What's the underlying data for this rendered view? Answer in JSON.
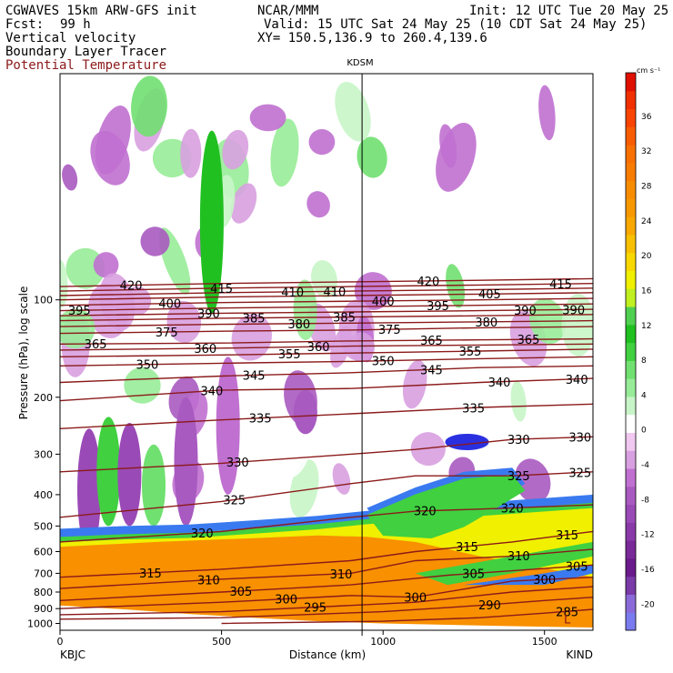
{
  "header": {
    "model": "CGWAVES 15km ARW-GFS init",
    "org": "NCAR/MMM",
    "init": "Init: 12 UTC Tue 20 May 25",
    "fcst_label": "Fcst:",
    "fcst_value": "99 h",
    "valid": "Valid: 15 UTC Sat 24 May 25 (10 CDT Sat 24 May 25)",
    "field1": "Vertical velocity",
    "field2": "Boundary Layer Tracer",
    "field3": "Potential Temperature",
    "xy": "XY= 150.5,136.9 to 260.4,139.6"
  },
  "colors": {
    "theta": "#8b1a1a",
    "terrain": "#ffffff"
  },
  "chart_data": {
    "type": "heatmap",
    "title": "KDSM",
    "xlabel": "Distance (km)",
    "ylabel": "Pressure (hPa), log scale",
    "xlim": [
      0,
      1650
    ],
    "ylim_hpa": [
      1050,
      20
    ],
    "x_ticks": [
      {
        "value": 0,
        "label": "0"
      },
      {
        "value": 500,
        "label": "500"
      },
      {
        "value": 1000,
        "label": "1000"
      },
      {
        "value": 1500,
        "label": "1500"
      }
    ],
    "y_ticks": [
      {
        "value": 100,
        "label": "100"
      },
      {
        "value": 200,
        "label": "200"
      },
      {
        "value": 300,
        "label": "300"
      },
      {
        "value": 400,
        "label": "400"
      },
      {
        "value": 500,
        "label": "500"
      },
      {
        "value": 600,
        "label": "600"
      },
      {
        "value": 700,
        "label": "700"
      },
      {
        "value": 800,
        "label": "800"
      },
      {
        "value": 900,
        "label": "900"
      },
      {
        "value": 1000,
        "label": "1000"
      }
    ],
    "station_left": "KBJC",
    "station_right": "KIND",
    "station_mid_km": 935,
    "colorbar": {
      "unit": "cm s⁻¹",
      "levels": [
        -22,
        -20,
        -18,
        -16,
        -14,
        -12,
        -10,
        -8,
        -6,
        -4,
        -2,
        2,
        4,
        6,
        8,
        10,
        12,
        14,
        16,
        18,
        20,
        22,
        24,
        26,
        28,
        30,
        32,
        34,
        36,
        38,
        40
      ],
      "colors": [
        "#7b7bf0",
        "#8a6ad8",
        "#7a3aa8",
        "#6a1a8a",
        "#7a2a98",
        "#8a3aa8",
        "#9a4ab6",
        "#a85ac0",
        "#c070d0",
        "#d8a0e0",
        "#f0c8f0",
        "#ffffff",
        "#c8f5c8",
        "#98ec98",
        "#70e070",
        "#40d040",
        "#20c020",
        "#50d050",
        "#c0f020",
        "#f0f000",
        "#f8d800",
        "#f8c000",
        "#f8a800",
        "#f89800",
        "#f88c00",
        "#f87c00",
        "#f87000",
        "#f85c00",
        "#f84400",
        "#f03000",
        "#e01000"
      ],
      "labels": [
        {
          "value": -20,
          "label": "-20"
        },
        {
          "value": -16,
          "label": "-16"
        },
        {
          "value": -12,
          "label": "-12"
        },
        {
          "value": -8,
          "label": "-8"
        },
        {
          "value": -4,
          "label": "-4"
        },
        {
          "value": 0,
          "label": "0"
        },
        {
          "value": 4,
          "label": "4"
        },
        {
          "value": 8,
          "label": "8"
        },
        {
          "value": 12,
          "label": "12"
        },
        {
          "value": 16,
          "label": "16"
        },
        {
          "value": 20,
          "label": "20"
        },
        {
          "value": 24,
          "label": "24"
        },
        {
          "value": 28,
          "label": "28"
        },
        {
          "value": 32,
          "label": "32"
        },
        {
          "value": 36,
          "label": "36"
        }
      ]
    },
    "theta_isentropes": [
      {
        "label": "285",
        "points": [
          [
            500,
            1000
          ],
          [
            1000,
            985
          ],
          [
            1300,
            960
          ],
          [
            1500,
            930
          ],
          [
            1650,
            905
          ]
        ],
        "labels_at_km": [
          1570
        ]
      },
      {
        "label": "290",
        "points": [
          [
            0,
            970
          ],
          [
            500,
            960
          ],
          [
            1000,
            920
          ],
          [
            1300,
            880
          ],
          [
            1500,
            850
          ],
          [
            1650,
            830
          ]
        ],
        "labels_at_km": [
          1330
        ]
      },
      {
        "label": "295",
        "points": [
          [
            0,
            940
          ],
          [
            500,
            920
          ],
          [
            900,
            880
          ],
          [
            1100,
            860
          ],
          [
            1400,
            800
          ],
          [
            1650,
            770
          ]
        ],
        "labels_at_km": [
          790
        ]
      },
      {
        "label": "300",
        "points": [
          [
            0,
            900
          ],
          [
            500,
            860
          ],
          [
            900,
            820
          ],
          [
            1100,
            830
          ],
          [
            1400,
            740
          ],
          [
            1650,
            720
          ]
        ],
        "labels_at_km": [
          700,
          1100,
          1500
        ]
      },
      {
        "label": "305",
        "points": [
          [
            0,
            850
          ],
          [
            500,
            800
          ],
          [
            900,
            760
          ],
          [
            1200,
            710
          ],
          [
            1650,
            660
          ]
        ],
        "labels_at_km": [
          560,
          1280,
          1600
        ]
      },
      {
        "label": "310",
        "points": [
          [
            0,
            780
          ],
          [
            500,
            730
          ],
          [
            900,
            700
          ],
          [
            1100,
            640
          ],
          [
            1400,
            620
          ],
          [
            1650,
            590
          ]
        ],
        "labels_at_km": [
          460,
          870,
          1420
        ]
      },
      {
        "label": "315",
        "points": [
          [
            0,
            720
          ],
          [
            500,
            680
          ],
          [
            900,
            640
          ],
          [
            1100,
            600
          ],
          [
            1400,
            560
          ],
          [
            1650,
            520
          ]
        ],
        "labels_at_km": [
          280,
          1260,
          1570
        ]
      },
      {
        "label": "320",
        "points": [
          [
            0,
            560
          ],
          [
            500,
            520
          ],
          [
            900,
            470
          ],
          [
            1100,
            450
          ],
          [
            1400,
            440
          ],
          [
            1650,
            430
          ]
        ],
        "labels_at_km": [
          440,
          1130,
          1400
        ]
      },
      {
        "label": "325",
        "points": [
          [
            0,
            470
          ],
          [
            500,
            420
          ],
          [
            900,
            370
          ],
          [
            1100,
            350
          ],
          [
            1400,
            350
          ],
          [
            1650,
            340
          ]
        ],
        "labels_at_km": [
          540,
          1420,
          1610
        ]
      },
      {
        "label": "330",
        "points": [
          [
            0,
            340
          ],
          [
            500,
            320
          ],
          [
            900,
            300
          ],
          [
            1100,
            290
          ],
          [
            1400,
            270
          ],
          [
            1650,
            265
          ]
        ],
        "labels_at_km": [
          550,
          1420,
          1610
        ]
      },
      {
        "label": "335",
        "points": [
          [
            0,
            250
          ],
          [
            500,
            235
          ],
          [
            900,
            225
          ],
          [
            1300,
            215
          ],
          [
            1650,
            210
          ]
        ],
        "labels_at_km": [
          620,
          1280
        ]
      },
      {
        "label": "340",
        "points": [
          [
            0,
            205
          ],
          [
            500,
            190
          ],
          [
            900,
            188
          ],
          [
            1300,
            180
          ],
          [
            1650,
            175
          ]
        ],
        "labels_at_km": [
          470,
          1360,
          1600
        ]
      },
      {
        "label": "345",
        "points": [
          [
            0,
            180
          ],
          [
            500,
            172
          ],
          [
            900,
            168
          ],
          [
            1300,
            162
          ],
          [
            1650,
            160
          ]
        ],
        "labels_at_km": [
          600,
          1150
        ]
      },
      {
        "label": "350",
        "points": [
          [
            0,
            160
          ],
          [
            500,
            157
          ],
          [
            900,
            155
          ],
          [
            1300,
            152
          ],
          [
            1650,
            150
          ]
        ],
        "labels_at_km": [
          270,
          1000
        ]
      },
      {
        "label": "355",
        "points": [
          [
            0,
            150
          ],
          [
            500,
            148
          ],
          [
            900,
            146
          ],
          [
            1300,
            144
          ],
          [
            1650,
            142
          ]
        ],
        "labels_at_km": [
          710,
          1270
        ]
      },
      {
        "label": "360",
        "points": [
          [
            0,
            143
          ],
          [
            500,
            141
          ],
          [
            900,
            139
          ],
          [
            1300,
            138
          ],
          [
            1650,
            137
          ]
        ],
        "labels_at_km": [
          450,
          800
        ]
      },
      {
        "label": "365",
        "points": [
          [
            0,
            137
          ],
          [
            500,
            136
          ],
          [
            900,
            134
          ],
          [
            1300,
            133
          ],
          [
            1650,
            132
          ]
        ],
        "labels_at_km": [
          110,
          1150,
          1450
        ]
      },
      {
        "label": "375",
        "points": [
          [
            0,
            127
          ],
          [
            500,
            125
          ],
          [
            900,
            124
          ],
          [
            1300,
            122
          ],
          [
            1650,
            121
          ]
        ],
        "labels_at_km": [
          330,
          1020
        ]
      },
      {
        "label": "380",
        "points": [
          [
            0,
            121
          ],
          [
            500,
            119
          ],
          [
            900,
            118
          ],
          [
            1300,
            117
          ],
          [
            1650,
            116
          ]
        ],
        "labels_at_km": [
          740,
          1320
        ]
      },
      {
        "label": "385",
        "points": [
          [
            0,
            116
          ],
          [
            500,
            114
          ],
          [
            900,
            113
          ],
          [
            1300,
            112
          ],
          [
            1650,
            111
          ]
        ],
        "labels_at_km": [
          600,
          880
        ]
      },
      {
        "label": "390",
        "points": [
          [
            0,
            112
          ],
          [
            500,
            110
          ],
          [
            900,
            109
          ],
          [
            1300,
            108
          ],
          [
            1650,
            107
          ]
        ],
        "labels_at_km": [
          460,
          1440,
          1590
        ]
      },
      {
        "label": "395",
        "points": [
          [
            0,
            108
          ],
          [
            500,
            106
          ],
          [
            900,
            105
          ],
          [
            1300,
            104
          ],
          [
            1650,
            103
          ]
        ],
        "labels_at_km": [
          60,
          1170
        ]
      },
      {
        "label": "400",
        "points": [
          [
            0,
            104
          ],
          [
            500,
            102
          ],
          [
            900,
            101
          ],
          [
            1300,
            100
          ],
          [
            1650,
            99
          ]
        ],
        "labels_at_km": [
          340,
          1000
        ]
      },
      {
        "label": "405",
        "points": [
          [
            0,
            100
          ],
          [
            500,
            98
          ],
          [
            900,
            97
          ],
          [
            1300,
            96
          ],
          [
            1650,
            95
          ]
        ],
        "labels_at_km": [
          1330
        ]
      },
      {
        "label": "410",
        "points": [
          [
            0,
            97
          ],
          [
            500,
            95
          ],
          [
            900,
            94
          ],
          [
            1300,
            93
          ],
          [
            1650,
            92
          ]
        ],
        "labels_at_km": [
          720,
          850
        ]
      },
      {
        "label": "415",
        "points": [
          [
            0,
            94
          ],
          [
            500,
            92
          ],
          [
            900,
            91
          ],
          [
            1300,
            90
          ],
          [
            1650,
            89
          ]
        ],
        "labels_at_km": [
          500,
          1550
        ]
      },
      {
        "label": "420",
        "points": [
          [
            0,
            91
          ],
          [
            500,
            89
          ],
          [
            900,
            88
          ],
          [
            1300,
            87
          ],
          [
            1650,
            86
          ]
        ],
        "labels_at_km": [
          220,
          1140
        ]
      }
    ],
    "extra_labels": [
      {
        "label": "L",
        "x_km": 1560,
        "p_hpa": 1000
      }
    ]
  }
}
